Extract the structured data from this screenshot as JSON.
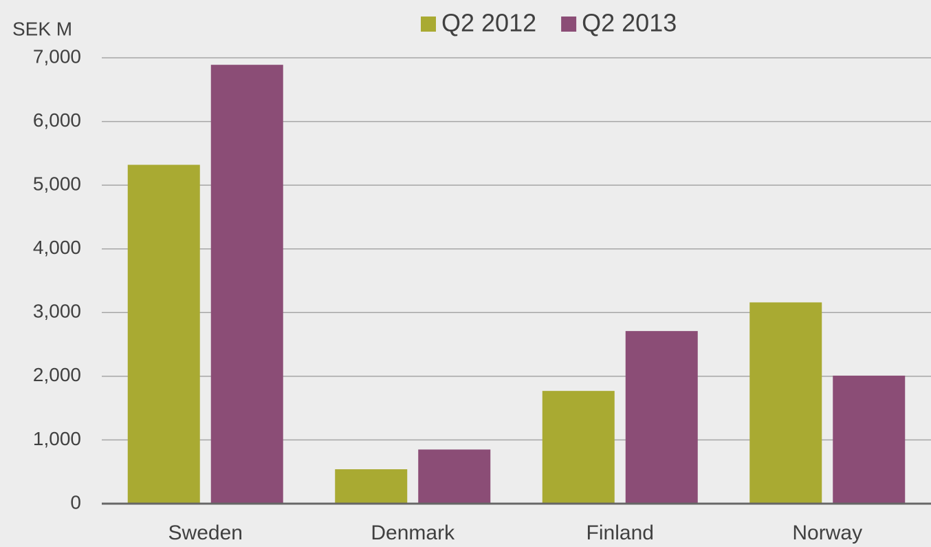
{
  "chart_data": {
    "type": "bar",
    "y_axis_label": "SEK M",
    "categories": [
      "Sweden",
      "Denmark",
      "Finland",
      "Norway"
    ],
    "series": [
      {
        "name": "Q2 2012",
        "color": "#a9aa32",
        "values": [
          5320,
          540,
          1770,
          3160
        ]
      },
      {
        "name": "Q2 2013",
        "color": "#8b4d76",
        "values": [
          6890,
          850,
          2710,
          2010
        ]
      }
    ],
    "ylim": [
      0,
      7000
    ],
    "yticks": [
      0,
      {
        "value": 1000,
        "label": "1,000"
      },
      {
        "value": 2000,
        "label": "2,000"
      },
      {
        "value": 3000,
        "label": "3,000"
      },
      {
        "value": 4000,
        "label": "4,000"
      },
      {
        "value": 5000,
        "label": "5,000"
      },
      {
        "value": 6000,
        "label": "6,000"
      },
      {
        "value": 7000,
        "label": "7,000"
      }
    ],
    "grid": true,
    "legend": "top"
  }
}
